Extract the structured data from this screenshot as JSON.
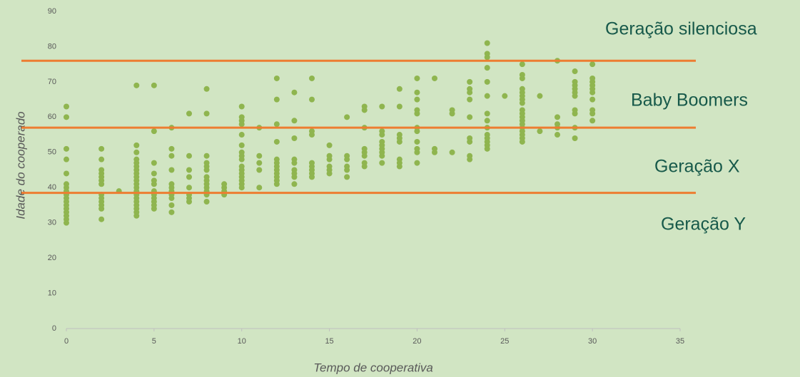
{
  "chart_data": {
    "type": "scatter",
    "x_label": "Tempo de cooperativa",
    "y_label": "Idade do cooperado",
    "color": "#8fb54f",
    "line_color": "#ed7d31",
    "reference_lines": [
      76,
      57,
      38.5
    ],
    "annotations": [
      "Geração silenciosa",
      "Baby Boomers",
      "Geração X",
      "Geração Y"
    ],
    "xlim": [
      0,
      35
    ],
    "xticks": [
      0,
      5,
      10,
      15,
      20,
      25,
      30,
      35
    ],
    "ylim": [
      0,
      90
    ],
    "yticks": [
      0,
      10,
      20,
      30,
      40,
      50,
      60,
      70,
      80,
      90
    ],
    "x": [
      0,
      0,
      0,
      0,
      0,
      0,
      0,
      0,
      0,
      0,
      0,
      0,
      0,
      0,
      0,
      0,
      0,
      2,
      2,
      2,
      2,
      2,
      2,
      2,
      2,
      2,
      2,
      2,
      2,
      2,
      3,
      4,
      4,
      4,
      4,
      4,
      4,
      4,
      4,
      4,
      4,
      4,
      4,
      4,
      4,
      4,
      4,
      4,
      4,
      4,
      4,
      5,
      5,
      5,
      5,
      5,
      5,
      5,
      5,
      5,
      5,
      5,
      5,
      6,
      6,
      6,
      6,
      6,
      6,
      6,
      6,
      6,
      6,
      6,
      7,
      7,
      7,
      7,
      7,
      7,
      7,
      7,
      8,
      8,
      8,
      8,
      8,
      8,
      8,
      8,
      8,
      8,
      8,
      8,
      8,
      9,
      9,
      9,
      9,
      10,
      10,
      10,
      10,
      10,
      10,
      10,
      10,
      10,
      10,
      10,
      10,
      10,
      10,
      10,
      10,
      11,
      11,
      11,
      11,
      11,
      12,
      12,
      12,
      12,
      12,
      12,
      12,
      12,
      12,
      12,
      12,
      12,
      13,
      13,
      13,
      13,
      13,
      13,
      13,
      13,
      13,
      14,
      14,
      14,
      14,
      14,
      14,
      14,
      14,
      14,
      15,
      15,
      15,
      15,
      15,
      15,
      16,
      16,
      16,
      16,
      16,
      16,
      17,
      17,
      17,
      17,
      17,
      17,
      17,
      17,
      18,
      18,
      18,
      18,
      18,
      18,
      18,
      18,
      18,
      19,
      19,
      19,
      19,
      19,
      19,
      19,
      19,
      20,
      20,
      20,
      20,
      20,
      20,
      20,
      20,
      20,
      20,
      20,
      21,
      21,
      21,
      22,
      22,
      22,
      23,
      23,
      23,
      23,
      23,
      23,
      23,
      23,
      23,
      24,
      24,
      24,
      24,
      24,
      24,
      24,
      24,
      24,
      24,
      24,
      24,
      24,
      24,
      25,
      26,
      26,
      26,
      26,
      26,
      26,
      26,
      26,
      26,
      26,
      26,
      26,
      26,
      26,
      26,
      26,
      26,
      26,
      27,
      27,
      28,
      28,
      28,
      28,
      28,
      29,
      29,
      29,
      29,
      29,
      29,
      29,
      29,
      29,
      29,
      30,
      30,
      30,
      30,
      30,
      30,
      30,
      30,
      30,
      30
    ],
    "values": [
      30,
      31,
      32,
      33,
      34,
      35,
      36,
      37,
      38,
      39,
      40,
      41,
      44,
      48,
      51,
      60,
      63,
      31,
      34,
      35,
      36,
      37,
      38,
      41,
      42,
      43,
      44,
      45,
      48,
      51,
      39,
      32,
      33,
      34,
      35,
      36,
      37,
      38,
      39,
      40,
      41,
      42,
      43,
      44,
      45,
      46,
      47,
      48,
      50,
      52,
      69,
      34,
      35,
      36,
      37,
      38,
      39,
      41,
      42,
      44,
      47,
      56,
      69,
      33,
      35,
      37,
      38,
      39,
      40,
      41,
      45,
      49,
      51,
      57,
      36,
      37,
      38,
      40,
      43,
      45,
      49,
      61,
      36,
      38,
      39,
      40,
      41,
      42,
      43,
      45,
      46,
      47,
      49,
      61,
      68,
      38,
      39,
      40,
      41,
      40,
      41,
      42,
      43,
      44,
      45,
      46,
      48,
      49,
      50,
      52,
      55,
      58,
      59,
      60,
      63,
      40,
      45,
      47,
      49,
      57,
      41,
      42,
      43,
      44,
      45,
      46,
      47,
      48,
      53,
      58,
      65,
      71,
      41,
      43,
      44,
      45,
      47,
      48,
      54,
      59,
      67,
      43,
      44,
      45,
      46,
      47,
      55,
      56,
      65,
      71,
      44,
      45,
      46,
      48,
      49,
      52,
      43,
      45,
      46,
      48,
      49,
      60,
      46,
      47,
      49,
      50,
      51,
      57,
      62,
      63,
      47,
      49,
      50,
      51,
      52,
      53,
      55,
      56,
      63,
      46,
      47,
      48,
      53,
      54,
      55,
      63,
      68,
      47,
      50,
      51,
      53,
      56,
      57,
      61,
      62,
      65,
      67,
      71,
      50,
      51,
      71,
      50,
      61,
      62,
      48,
      49,
      53,
      54,
      60,
      65,
      67,
      68,
      70,
      51,
      52,
      53,
      54,
      55,
      57,
      59,
      61,
      66,
      70,
      74,
      77,
      78,
      81,
      66,
      53,
      54,
      55,
      56,
      57,
      58,
      59,
      60,
      61,
      62,
      64,
      65,
      66,
      67,
      68,
      71,
      72,
      75,
      56,
      66,
      55,
      57,
      58,
      60,
      76,
      54,
      57,
      61,
      62,
      66,
      67,
      68,
      69,
      70,
      73,
      59,
      61,
      62,
      65,
      67,
      68,
      69,
      70,
      71,
      75
    ]
  }
}
